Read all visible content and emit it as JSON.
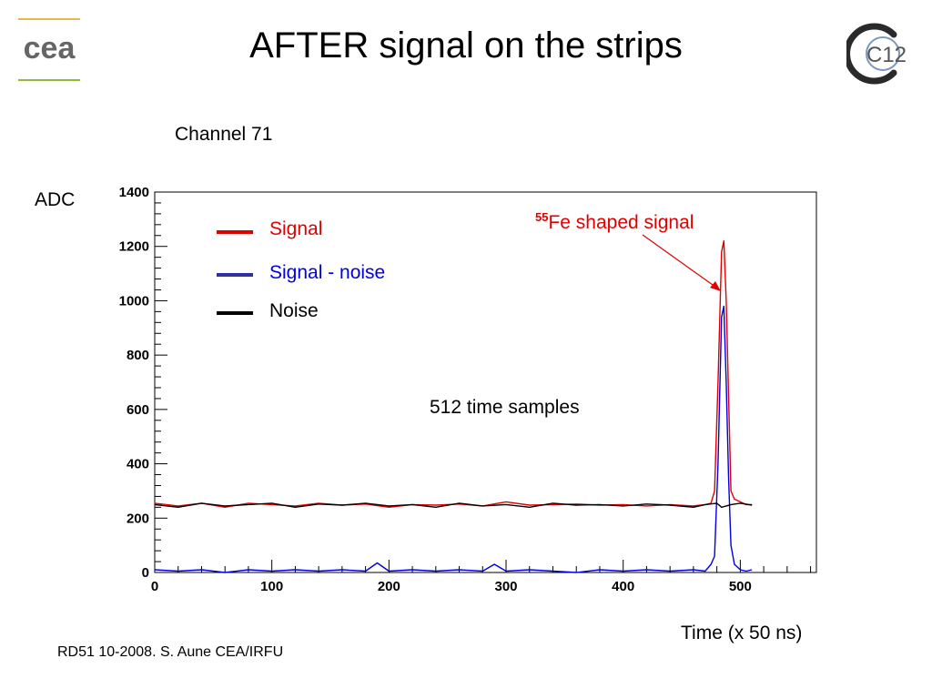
{
  "slide": {
    "title": "AFTER signal on the strips",
    "channel_label": "Channel 71",
    "footer": "RD51 10-2008. S. Aune CEA/IRFU",
    "logo_left_text": "cea",
    "logo_right_text": "C12"
  },
  "colors": {
    "signal": "#e00000",
    "signal_minus_noise": "#0000e0",
    "noise": "#000000",
    "legend_blue_bar": "#3030a0",
    "logo_gold": "#e8b84a",
    "logo_green": "#8dba3a"
  },
  "annotations": {
    "fe_superscript": "55",
    "fe_text": "Fe shaped signal",
    "samples": "512 time samples"
  },
  "chart_data": {
    "type": "line",
    "title": "",
    "ylabel": "ADC",
    "xlabel": "Time (x 50 ns)",
    "xlim": [
      0,
      565
    ],
    "ylim": [
      0,
      1400
    ],
    "x_ticks": [
      "0",
      "100",
      "200",
      "300",
      "400",
      "500"
    ],
    "y_ticks": [
      "0",
      "200",
      "400",
      "600",
      "800",
      "1000",
      "1200",
      "1400"
    ],
    "legend": [
      "Signal",
      "Signal - noise",
      "Noise"
    ],
    "legend_position": "top-left",
    "grid": false,
    "series": [
      {
        "name": "Signal",
        "x": [
          0,
          20,
          40,
          60,
          80,
          100,
          120,
          140,
          160,
          180,
          200,
          220,
          240,
          260,
          280,
          300,
          320,
          340,
          360,
          380,
          400,
          420,
          440,
          460,
          470,
          475,
          478,
          481,
          484,
          486,
          488,
          490,
          492,
          495,
          500,
          505,
          510
        ],
        "y": [
          255,
          245,
          255,
          240,
          255,
          250,
          245,
          255,
          248,
          252,
          240,
          250,
          248,
          252,
          245,
          260,
          248,
          250,
          252,
          248,
          250,
          245,
          250,
          245,
          250,
          255,
          300,
          700,
          1180,
          1220,
          1000,
          650,
          300,
          270,
          260,
          250,
          250
        ]
      },
      {
        "name": "Signal - noise",
        "x": [
          0,
          20,
          40,
          60,
          80,
          100,
          120,
          140,
          160,
          180,
          190,
          200,
          220,
          240,
          260,
          280,
          290,
          300,
          320,
          340,
          360,
          380,
          400,
          420,
          440,
          460,
          470,
          475,
          478,
          481,
          484,
          486,
          488,
          490,
          492,
          495,
          500,
          505,
          510
        ],
        "y": [
          10,
          5,
          10,
          0,
          10,
          5,
          10,
          5,
          10,
          5,
          35,
          5,
          10,
          5,
          10,
          5,
          30,
          5,
          10,
          5,
          0,
          10,
          5,
          10,
          5,
          10,
          5,
          30,
          60,
          400,
          940,
          980,
          700,
          350,
          100,
          30,
          10,
          5,
          10
        ]
      },
      {
        "name": "Noise",
        "x": [
          0,
          20,
          40,
          60,
          80,
          100,
          120,
          140,
          160,
          180,
          200,
          220,
          240,
          260,
          280,
          300,
          320,
          340,
          360,
          380,
          400,
          420,
          440,
          460,
          470,
          480,
          484,
          488,
          492,
          500,
          510
        ],
        "y": [
          250,
          240,
          255,
          245,
          250,
          255,
          240,
          252,
          248,
          255,
          245,
          250,
          240,
          255,
          245,
          250,
          240,
          255,
          248,
          250,
          245,
          252,
          248,
          240,
          250,
          255,
          240,
          245,
          250,
          255,
          248
        ]
      }
    ]
  }
}
